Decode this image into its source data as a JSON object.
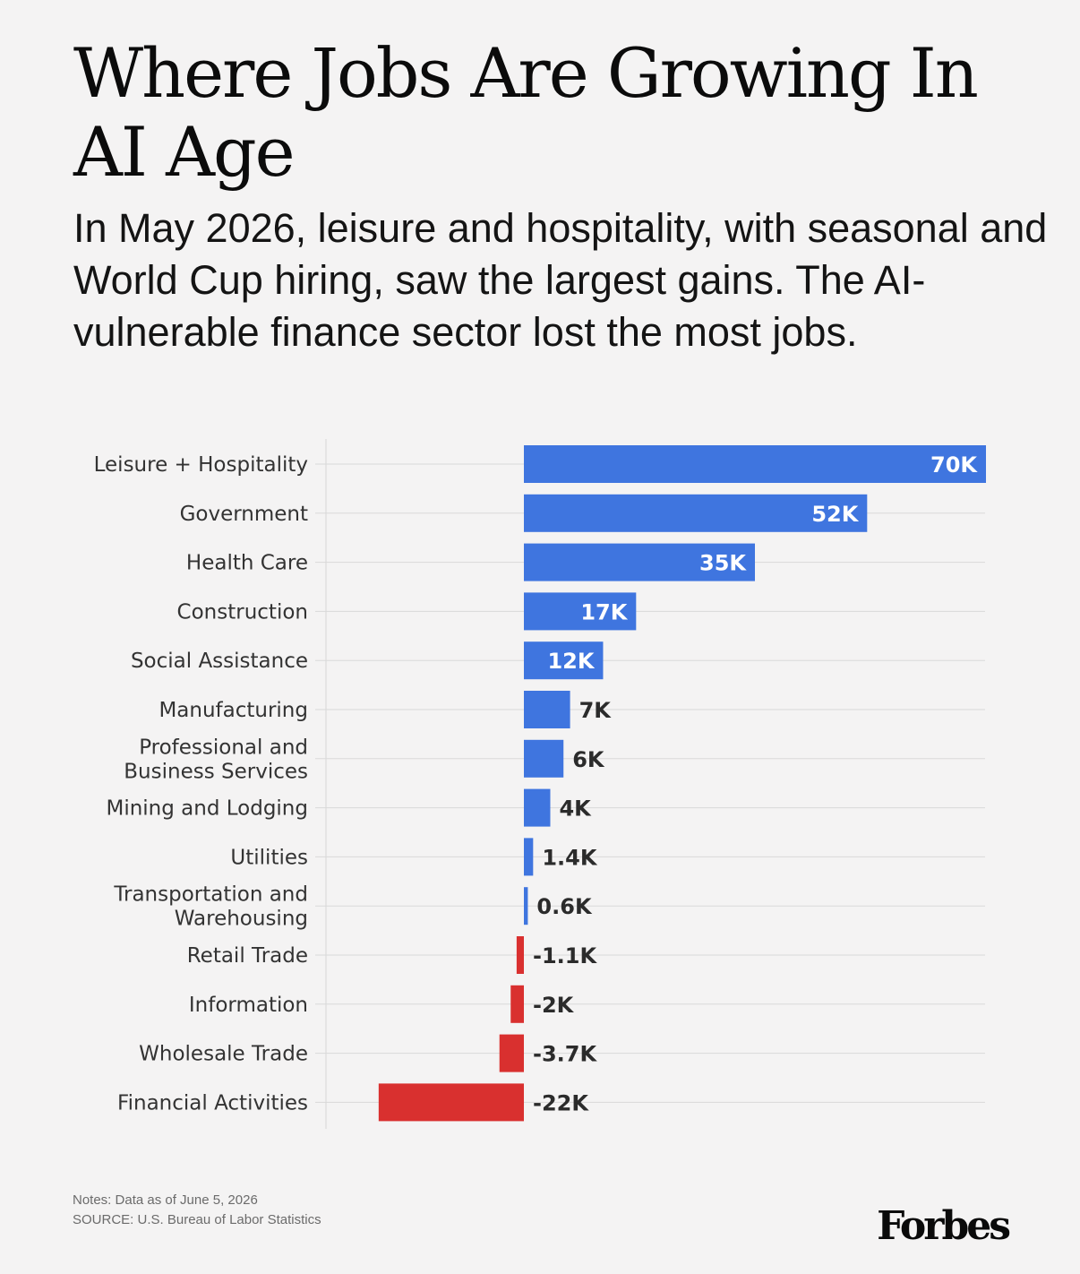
{
  "title": "Where Jobs Are Growing In AI Age",
  "subtitle": "In May 2026, leisure and hospitality, with seasonal and World Cup hiring, saw the largest gains. The AI-vulnerable finance sector lost the most jobs.",
  "notes": "Notes: Data as of June 5, 2026",
  "source": "SOURCE: U.S. Bureau of Labor Statistics",
  "logo": "Forbes",
  "colors": {
    "positive": "#3f75df",
    "negative": "#d9302f",
    "background": "#f4f3f3",
    "label_text": "#333333"
  },
  "chart_data": {
    "type": "bar",
    "orientation": "horizontal",
    "categories": [
      "Leisure + Hospitality",
      "Government",
      "Health Care",
      "Construction",
      "Social Assistance",
      "Manufacturing",
      "Professional and Business Services",
      "Mining and Lodging",
      "Utilities",
      "Transportation and Warehousing",
      "Retail Trade",
      "Information",
      "Wholesale Trade",
      "Financial Activities"
    ],
    "category_lines": [
      [
        "Leisure + Hospitality"
      ],
      [
        "Government"
      ],
      [
        "Health Care"
      ],
      [
        "Construction"
      ],
      [
        "Social Assistance"
      ],
      [
        "Manufacturing"
      ],
      [
        "Professional and",
        "Business Services"
      ],
      [
        "Mining and Lodging"
      ],
      [
        "Utilities"
      ],
      [
        "Transportation and",
        "Warehousing"
      ],
      [
        "Retail Trade"
      ],
      [
        "Information"
      ],
      [
        "Wholesale Trade"
      ],
      [
        "Financial Activities"
      ]
    ],
    "values": [
      70000,
      52000,
      35000,
      17000,
      12000,
      7000,
      6000,
      4000,
      1400,
      600,
      -1100,
      -2000,
      -3700,
      -22000
    ],
    "data_labels": [
      "70K",
      "52K",
      "35K",
      "17K",
      "12K",
      "7K",
      "6K",
      "4K",
      "1.4K",
      "0.6K",
      "-1.1K",
      "-2K",
      "-3.7K",
      "-22K"
    ],
    "xlim": [
      -30000,
      70000
    ],
    "grid": true
  }
}
